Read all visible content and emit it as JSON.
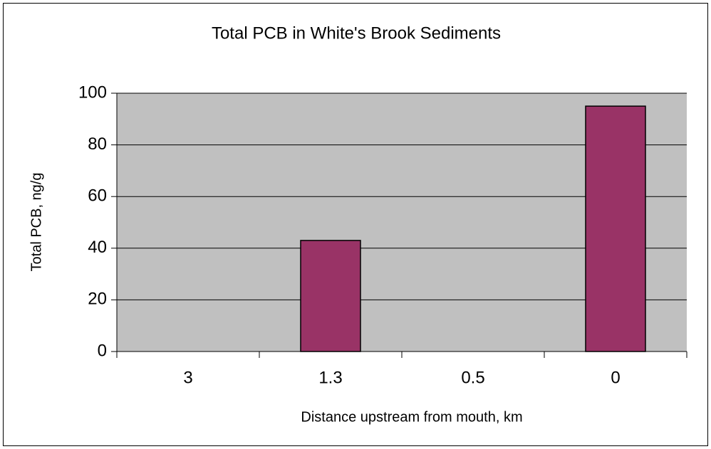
{
  "chart_data": {
    "type": "bar",
    "title": "Total PCB in White's Brook Sediments",
    "x_label": "Distance upstream from mouth, km",
    "y_label": "Total PCB, ng/g",
    "categories": [
      "3",
      "1.3",
      "0.5",
      "0"
    ],
    "values": [
      0,
      43,
      0,
      95
    ],
    "color": "#993366",
    "ylim": [
      0,
      100
    ],
    "yticks": [
      0,
      20,
      40,
      60,
      80,
      100
    ],
    "grid": true
  }
}
